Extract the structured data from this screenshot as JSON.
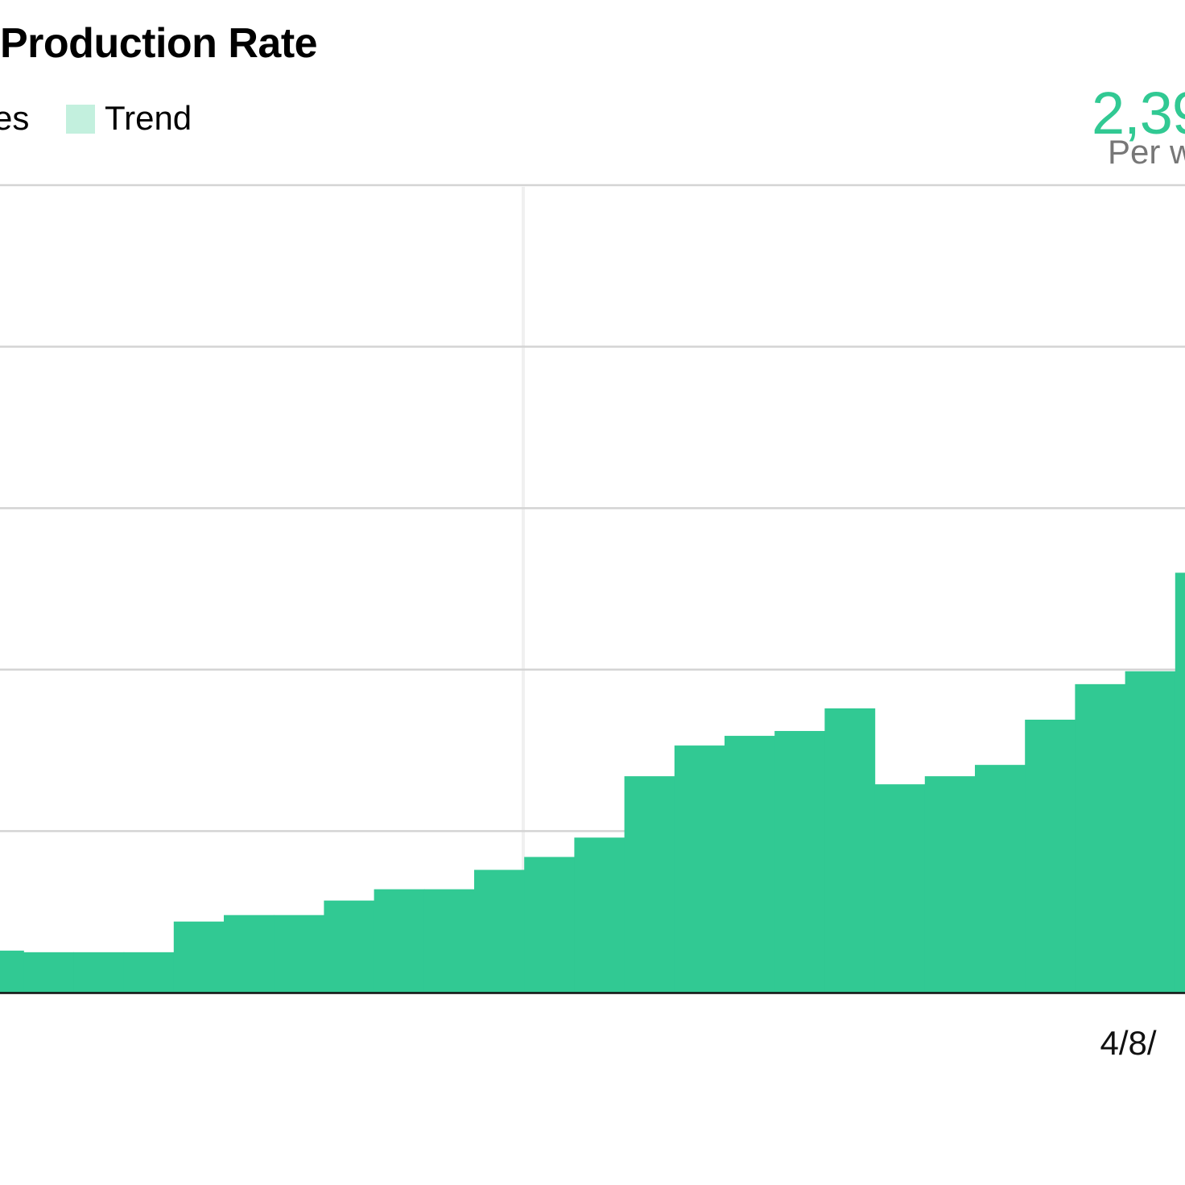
{
  "colors": {
    "bars": "#31c993",
    "trend": "#c3f0de",
    "stat": "#31c993",
    "caption": "#777777",
    "grid": "#d4d4d4",
    "axis": "#111111"
  },
  "stat": {
    "value": "2,39",
    "caption": "Per w"
  },
  "chart_data": {
    "type": "bar",
    "title": "Production Rate",
    "legend": [
      {
        "label": "es",
        "color": "#31c993"
      },
      {
        "label": "Trend",
        "color": "#c3f0de"
      }
    ],
    "legend_position": "top-left",
    "grid": true,
    "ylim": [
      0,
      5
    ],
    "x_ticks": [
      {
        "label": "4/8/",
        "index": 22.5
      }
    ],
    "series": [
      {
        "values": [
          0.26,
          0.25,
          0.25,
          0.25,
          0.44,
          0.48,
          0.48,
          0.57,
          0.64,
          0.64,
          0.76,
          0.84,
          0.96,
          1.34,
          1.53,
          1.59,
          1.62,
          1.76,
          1.29,
          1.34,
          1.41,
          1.69,
          1.91,
          1.99,
          2.6
        ]
      }
    ]
  }
}
